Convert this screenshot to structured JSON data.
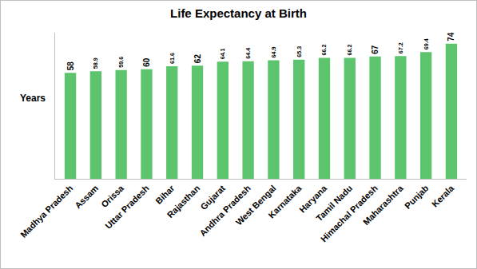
{
  "chart_data": {
    "type": "bar",
    "title": "Life Expectancy at Birth",
    "y_label": "Years",
    "categories": [
      "Madhya Pradesh",
      "Assam",
      "Orissa",
      "Uttar Pradesh",
      "Bihar",
      "Rajasthan",
      "Gujarat",
      "Andhra Pradesh",
      "West Bengal",
      "Karnataka",
      "Haryana",
      "Tamil Nadu",
      "Himachal Pradesh",
      "Maharashtra",
      "Punjab",
      "Kerala"
    ],
    "values": [
      58,
      58.9,
      59.6,
      60,
      61.6,
      62,
      64.1,
      64.4,
      64.9,
      65.3,
      66.2,
      66.2,
      67,
      67.2,
      69.4,
      74
    ],
    "color": "#5cc46c",
    "ylim": [
      0,
      80
    ],
    "grid": false,
    "data_labels": true,
    "tick_labels": "x"
  }
}
